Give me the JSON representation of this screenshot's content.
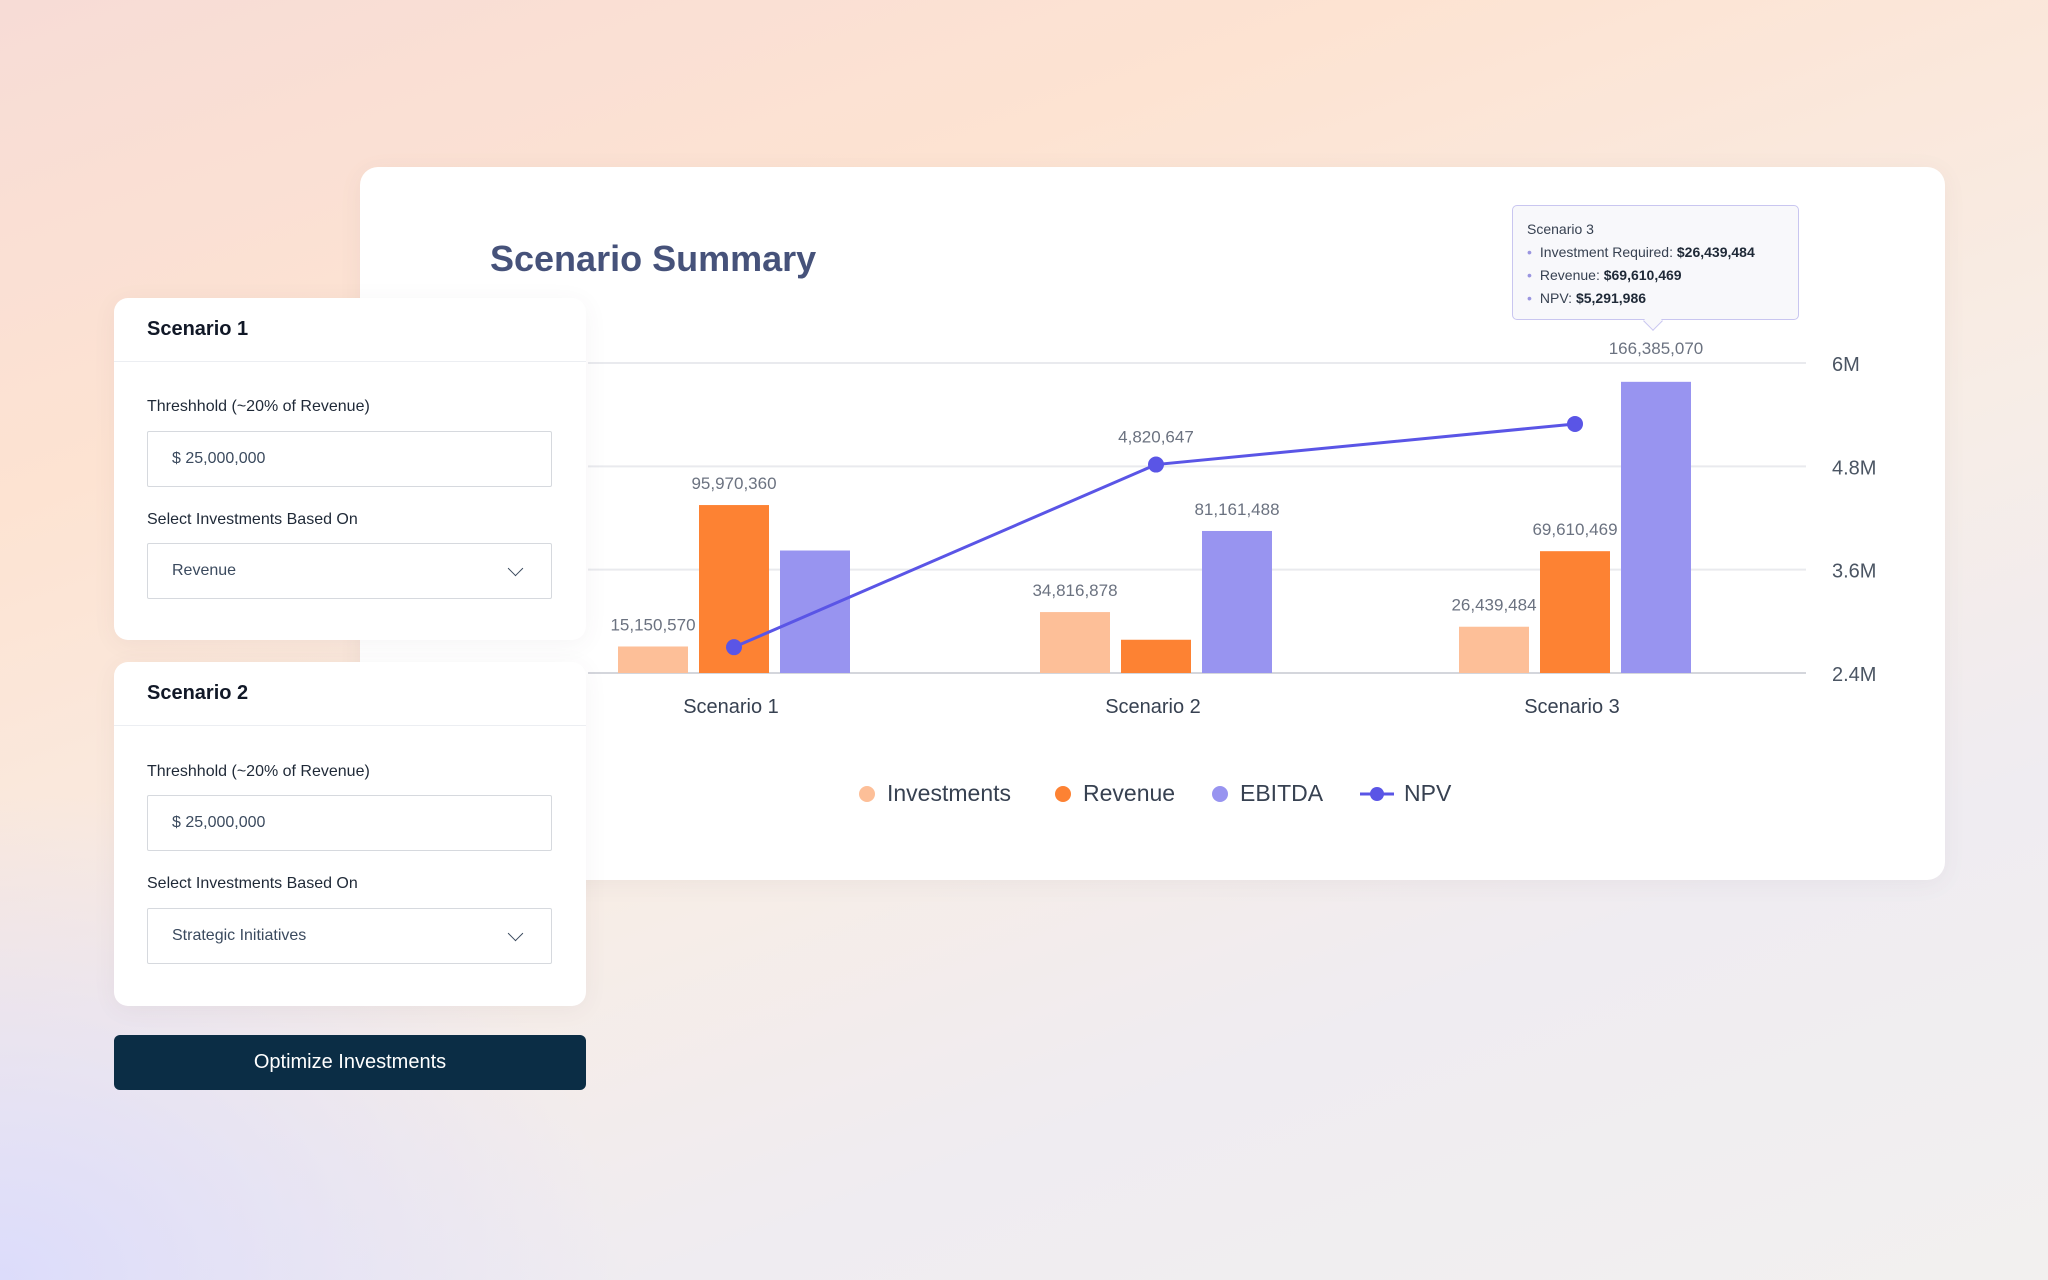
{
  "title": "Scenario Summary",
  "panels": [
    {
      "header": "Scenario 1",
      "threshold_label": "Threshhold (~20% of Revenue)",
      "threshold_value": "$ 25,000,000",
      "select_label": "Select Investments Based On",
      "select_value": "Revenue"
    },
    {
      "header": "Scenario 2",
      "threshold_label": "Threshhold (~20% of Revenue)",
      "threshold_value": "$ 25,000,000",
      "select_label": "Select Investments Based On",
      "select_value": "Strategic Initiatives"
    }
  ],
  "optimize_button": "Optimize Investments",
  "tooltip": {
    "title": "Scenario 3",
    "rows": [
      {
        "label": "Investment Required: ",
        "value": "$26,439,484"
      },
      {
        "label": "Revenue: ",
        "value": "$69,610,469"
      },
      {
        "label": "NPV: ",
        "value": "$5,291,986"
      }
    ]
  },
  "chart_data": {
    "type": "bar+line",
    "categories": [
      "Scenario 1",
      "Scenario 2",
      "Scenario 3"
    ],
    "series": [
      {
        "name": "Investments",
        "type": "bar",
        "color": "#fdbf98",
        "values": [
          15150570,
          34816878,
          26439484
        ],
        "labels": [
          "15,150,570",
          "34,816,878",
          "26,439,484"
        ]
      },
      {
        "name": "Revenue",
        "type": "bar",
        "color": "#fd8233",
        "values": [
          95970360,
          19000000,
          69610469
        ],
        "labels": [
          "95,970,360",
          null,
          "69,610,469"
        ]
      },
      {
        "name": "EBITDA",
        "type": "bar",
        "color": "#9894f0",
        "values": [
          70000000,
          81161488,
          166385070
        ],
        "labels": [
          null,
          "81,161,488",
          "166,385,070"
        ]
      },
      {
        "name": "NPV",
        "type": "line",
        "axis": "right",
        "color": "#5a55e6",
        "values": [
          2700000,
          4820647,
          5291986
        ],
        "labels": [
          null,
          "4,820,647",
          null
        ]
      }
    ],
    "right_axis": {
      "ticks": [
        "2.4M",
        "3.6M",
        "4.8M",
        "6M"
      ],
      "tick_values": [
        2400000,
        3600000,
        4800000,
        6000000
      ],
      "range": [
        2400000,
        6000000
      ]
    },
    "grid": true,
    "legend": "bottom"
  }
}
